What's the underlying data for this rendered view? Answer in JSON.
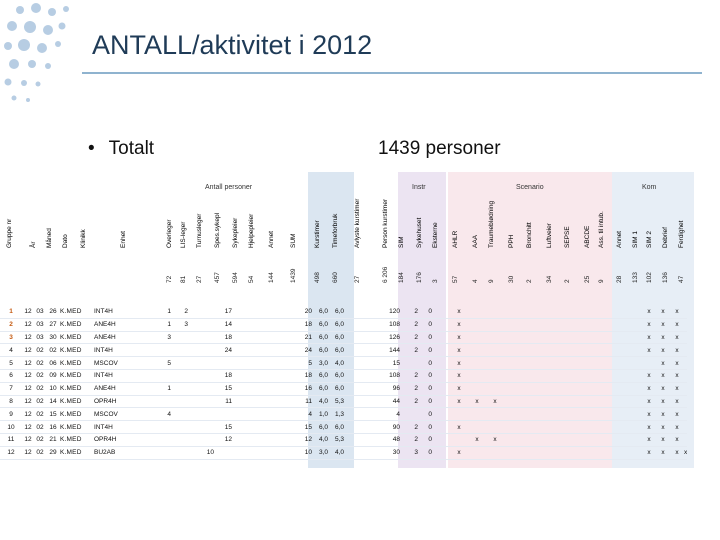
{
  "title": "ANTALL/aktivitet i 2012",
  "bullet": "Totalt",
  "persons": "1439 personer",
  "group_headers": {
    "antall": "Antall personer",
    "instr": "Instr",
    "scenario": "Scenario",
    "kom": "Kom"
  },
  "columns": [
    {
      "label": "Gruppe nr",
      "count": ""
    },
    {
      "label": "År",
      "count": ""
    },
    {
      "label": "Måned",
      "count": ""
    },
    {
      "label": "Dato",
      "count": ""
    },
    {
      "label": "Klinikk",
      "count": ""
    },
    {
      "label": "Enhet",
      "count": ""
    },
    {
      "label": "Overleger",
      "count": "72"
    },
    {
      "label": "LIS-leger",
      "count": "81"
    },
    {
      "label": "Turnusleger",
      "count": "27"
    },
    {
      "label": "Spes.sykepl",
      "count": "457"
    },
    {
      "label": "Sykepleier",
      "count": "594"
    },
    {
      "label": "Hjelpepleier",
      "count": "54"
    },
    {
      "label": "Annet",
      "count": "144"
    },
    {
      "label": "SUM",
      "count": "1439"
    },
    {
      "label": "Kurstimer",
      "count": "498"
    },
    {
      "label": "Timeforbruk",
      "count": "660"
    },
    {
      "label": "Avlyste kurstimer",
      "count": "27"
    },
    {
      "label": "Person kurstimer",
      "count": "6 206"
    },
    {
      "label": "SIM",
      "count": "184"
    },
    {
      "label": "Sykehuset",
      "count": "176"
    },
    {
      "label": "Eksterne",
      "count": "3"
    },
    {
      "label": "AHLR",
      "count": "57"
    },
    {
      "label": "AAA",
      "count": "4"
    },
    {
      "label": "Traumeblødning",
      "count": "9"
    },
    {
      "label": "PPH",
      "count": "30"
    },
    {
      "label": "Bronchitt",
      "count": "2"
    },
    {
      "label": "Luftveier",
      "count": "34"
    },
    {
      "label": "SEPSE",
      "count": "2"
    },
    {
      "label": "ABCDE",
      "count": "25"
    },
    {
      "label": "Ass. til intub.",
      "count": "9"
    },
    {
      "label": "Annet",
      "count": "28"
    },
    {
      "label": "SIM 1",
      "count": "133"
    },
    {
      "label": "SIM 2",
      "count": "102"
    },
    {
      "label": "Debrief",
      "count": "136"
    },
    {
      "label": "Ferdighet",
      "count": "47"
    }
  ],
  "rows": [
    {
      "i": "1",
      "yr": "12",
      "m": "03",
      "d": "26",
      "k": "K.MED",
      "e": "INT4H",
      "v": [
        "1",
        "2",
        "",
        "17",
        "",
        "",
        "",
        "20",
        "6,0",
        "6,0",
        "",
        "120",
        "2",
        "0",
        "",
        "x",
        "",
        "",
        "",
        "",
        "",
        "",
        "",
        "",
        "",
        "",
        "x",
        "x",
        "x",
        ""
      ]
    },
    {
      "i": "2",
      "yr": "12",
      "m": "03",
      "d": "27",
      "k": "K.MED",
      "e": "ANE4H",
      "v": [
        "1",
        "3",
        "",
        "14",
        "",
        "",
        "",
        "18",
        "6,0",
        "6,0",
        "",
        "108",
        "2",
        "0",
        "",
        "x",
        "",
        "",
        "",
        "",
        "",
        "",
        "",
        "",
        "",
        "",
        "x",
        "x",
        "x",
        ""
      ]
    },
    {
      "i": "3",
      "yr": "12",
      "m": "03",
      "d": "30",
      "k": "K.MED",
      "e": "ANE4H",
      "v": [
        "3",
        "",
        "",
        "18",
        "",
        "",
        "",
        "21",
        "6,0",
        "6,0",
        "",
        "126",
        "2",
        "0",
        "",
        "x",
        "",
        "",
        "",
        "",
        "",
        "",
        "",
        "",
        "",
        "",
        "x",
        "x",
        "x",
        ""
      ]
    },
    {
      "i": "4",
      "yr": "12",
      "m": "02",
      "d": "02",
      "k": "K.MED",
      "e": "INT4H",
      "v": [
        "",
        "",
        "",
        "24",
        "",
        "",
        "",
        "24",
        "6,0",
        "6,0",
        "",
        "144",
        "2",
        "0",
        "",
        "x",
        "",
        "",
        "",
        "",
        "",
        "",
        "",
        "",
        "",
        "",
        "x",
        "x",
        "x",
        ""
      ]
    },
    {
      "i": "5",
      "yr": "12",
      "m": "02",
      "d": "06",
      "k": "K.MED",
      "e": "MSCOV",
      "v": [
        "5",
        "",
        "",
        "",
        "",
        "",
        "",
        "5",
        "3,0",
        "4,0",
        "",
        "15",
        "",
        "0",
        "",
        "x",
        "",
        "",
        "",
        "",
        "",
        "",
        "",
        "",
        "",
        "",
        "",
        "x",
        "x",
        ""
      ]
    },
    {
      "i": "6",
      "yr": "12",
      "m": "02",
      "d": "09",
      "k": "K.MED",
      "e": "INT4H",
      "v": [
        "",
        "",
        "",
        "18",
        "",
        "",
        "",
        "18",
        "6,0",
        "6,0",
        "",
        "108",
        "2",
        "0",
        "",
        "x",
        "",
        "",
        "",
        "",
        "",
        "",
        "",
        "",
        "",
        "",
        "x",
        "x",
        "x",
        ""
      ]
    },
    {
      "i": "7",
      "yr": "12",
      "m": "02",
      "d": "10",
      "k": "K.MED",
      "e": "ANE4H",
      "v": [
        "1",
        "",
        "",
        "15",
        "",
        "",
        "",
        "16",
        "6,0",
        "6,0",
        "",
        "96",
        "2",
        "0",
        "",
        "x",
        "",
        "",
        "",
        "",
        "",
        "",
        "",
        "",
        "",
        "",
        "x",
        "x",
        "x",
        ""
      ]
    },
    {
      "i": "8",
      "yr": "12",
      "m": "02",
      "d": "14",
      "k": "K.MED",
      "e": "OPR4H",
      "v": [
        "",
        "",
        "",
        "11",
        "",
        "",
        "",
        "11",
        "4,0",
        "5,3",
        "",
        "44",
        "2",
        "0",
        "",
        "x",
        "x",
        "x",
        "",
        "",
        "",
        "",
        "",
        "",
        "",
        "",
        "x",
        "x",
        "x",
        ""
      ]
    },
    {
      "i": "9",
      "yr": "12",
      "m": "02",
      "d": "15",
      "k": "K.MED",
      "e": "MSCOV",
      "v": [
        "4",
        "",
        "",
        "",
        "",
        "",
        "",
        "4",
        "1,0",
        "1,3",
        "",
        "4",
        "",
        "0",
        "",
        "",
        "",
        "",
        "",
        "",
        "",
        "",
        "",
        "",
        "",
        "",
        "x",
        "x",
        "x",
        ""
      ]
    },
    {
      "i": "10",
      "yr": "12",
      "m": "02",
      "d": "16",
      "k": "K.MED",
      "e": "INT4H",
      "v": [
        "",
        "",
        "",
        "15",
        "",
        "",
        "",
        "15",
        "6,0",
        "6,0",
        "",
        "90",
        "2",
        "0",
        "",
        "x",
        "",
        "",
        "",
        "",
        "",
        "",
        "",
        "",
        "",
        "",
        "x",
        "x",
        "x",
        ""
      ]
    },
    {
      "i": "11",
      "yr": "12",
      "m": "02",
      "d": "21",
      "k": "K.MED",
      "e": "OPR4H",
      "v": [
        "",
        "",
        "",
        "12",
        "",
        "",
        "",
        "12",
        "4,0",
        "5,3",
        "",
        "48",
        "2",
        "0",
        "",
        "",
        "x",
        "x",
        "",
        "",
        "",
        "",
        "",
        "",
        "",
        "",
        "x",
        "x",
        "x",
        ""
      ]
    },
    {
      "i": "12",
      "yr": "12",
      "m": "02",
      "d": "29",
      "k": "K.MED",
      "e": "BU2AB",
      "v": [
        "",
        "",
        "10",
        "",
        "",
        "",
        "",
        "10",
        "3,0",
        "4,0",
        "",
        "30",
        "3",
        "0",
        "",
        "x",
        "",
        "",
        "",
        "",
        "",
        "",
        "",
        "",
        "",
        "",
        "x",
        "x",
        "x",
        "x"
      ]
    }
  ],
  "colors": {
    "title": "#1f3b57",
    "band_antall": "#ffffff",
    "band_kurs": "#dbe6f1",
    "band_instr": "#ece4f2",
    "band_scen_a": "#f6dde2",
    "band_scen_b": "#e7eef6",
    "row_stripe_bg": "#ffffff",
    "index_col_bg": "#c55a11"
  }
}
